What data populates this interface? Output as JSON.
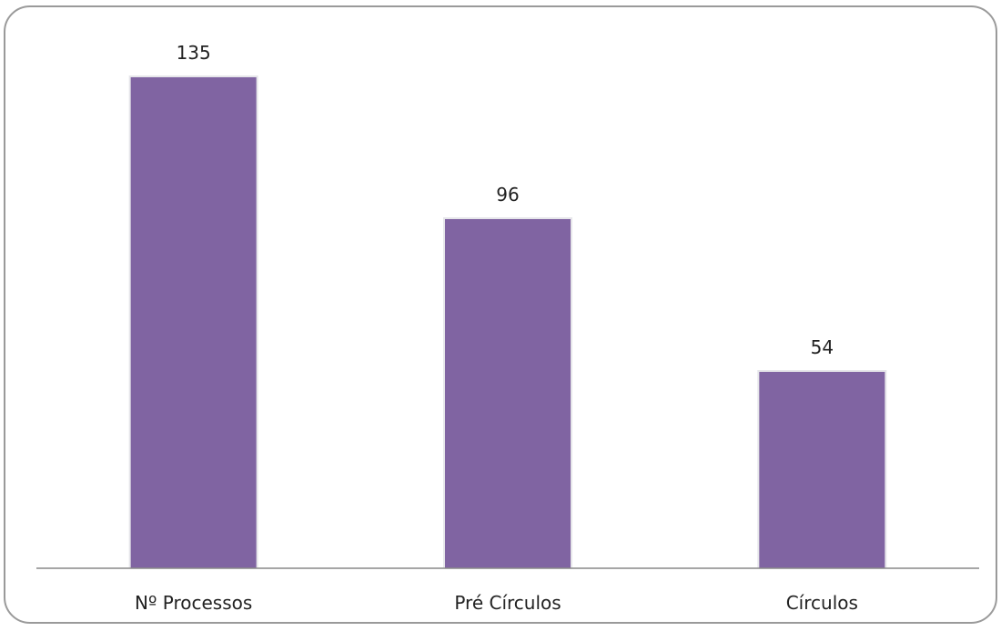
{
  "chart_data": {
    "type": "bar",
    "title": "",
    "xlabel": "",
    "ylabel": "",
    "categories": [
      "Nº Processos",
      "Pré Círculos",
      "Círculos"
    ],
    "values": [
      135,
      96,
      54
    ],
    "data_labels": [
      "135",
      "96",
      "54"
    ],
    "ylim": [
      0,
      150
    ],
    "grid": false,
    "legend": "none",
    "colors": {
      "bar": "#8064a2",
      "axis": "#898989",
      "border": "#9a9a9a",
      "text": "#222222"
    }
  }
}
